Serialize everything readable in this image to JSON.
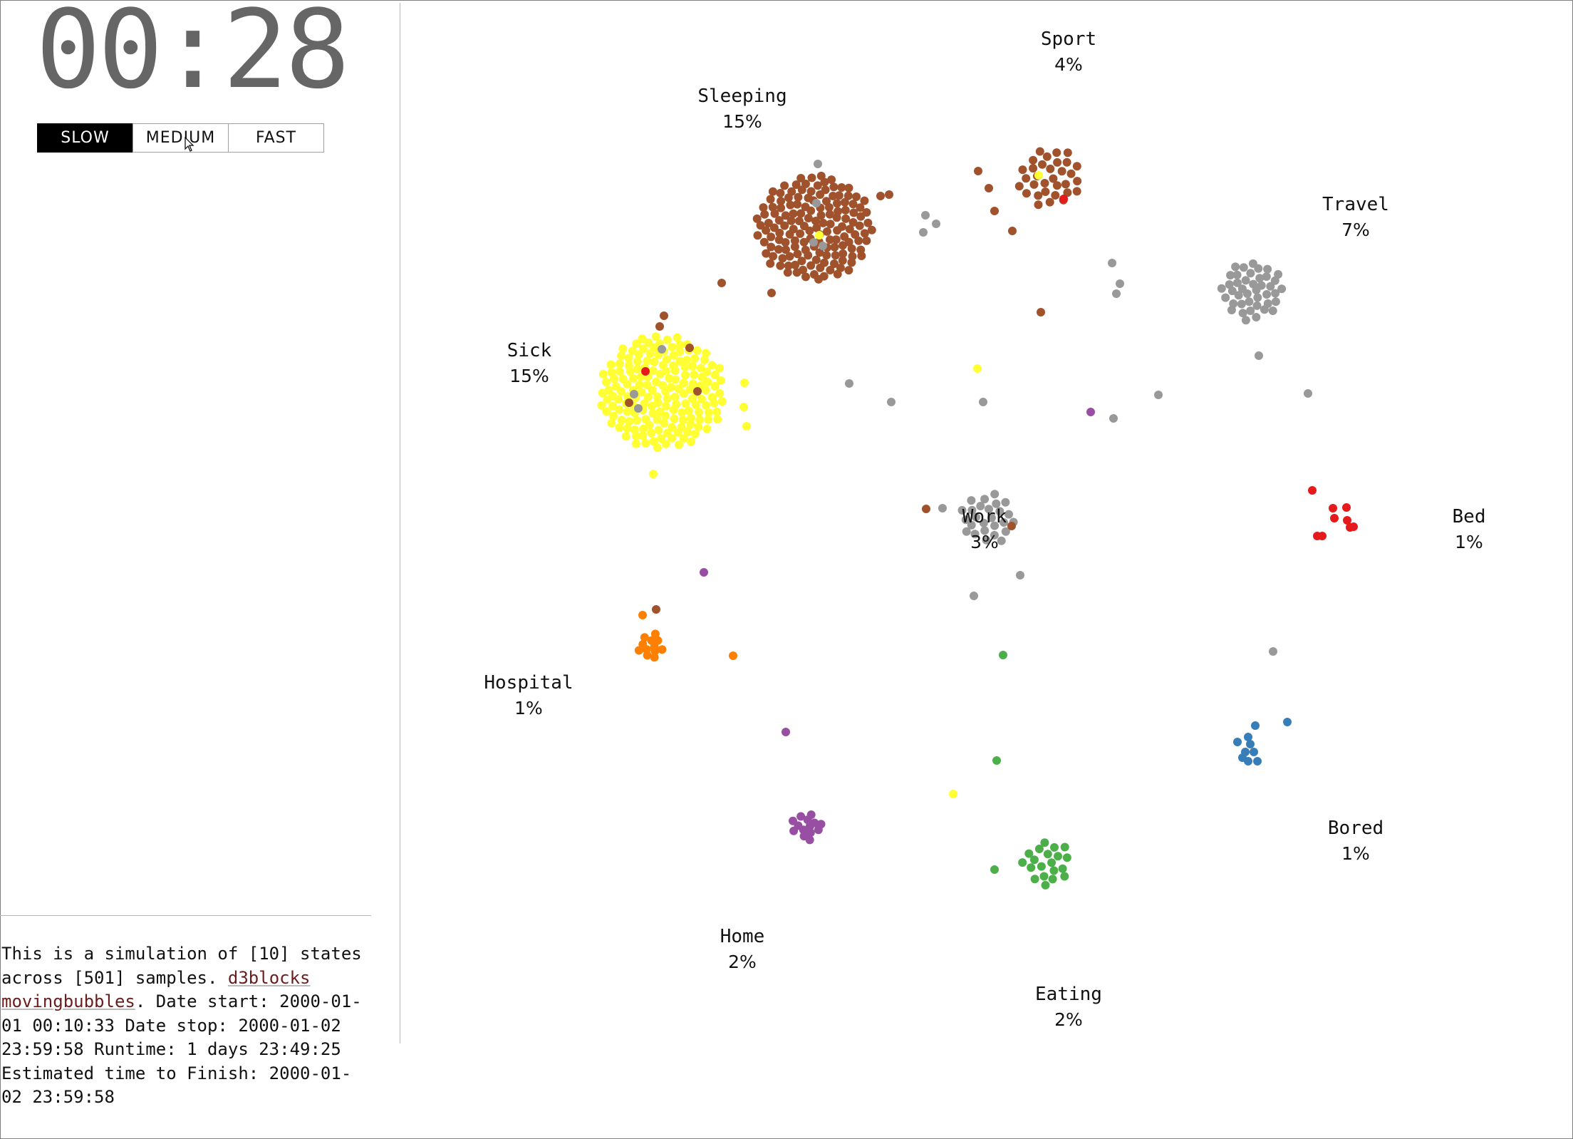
{
  "clock": "00:28",
  "speed": {
    "buttons": [
      {
        "label": "SLOW",
        "active": true
      },
      {
        "label": "MEDIUM",
        "active": false
      },
      {
        "label": "FAST",
        "active": false
      }
    ]
  },
  "description": {
    "text1": "This is a simulation of [10] states across [501] samples. ",
    "link": "d3blocks movingbubbles",
    "text2": ". Date start: 2000-01-01 00:10:33 Date stop: 2000-01-02 23:59:58 Runtime: 1 days 23:49:25 Estimated time to Finish: 2000-01-02 23:59:58"
  },
  "colors": {
    "sleeping": "#a0522d",
    "sick": "#ffff33",
    "grey": "#999999",
    "bed": "#e41a1c",
    "bored": "#377eb8",
    "eating": "#4daf4a",
    "home": "#984ea3",
    "hospital": "#ff7f00"
  },
  "states": [
    {
      "name": "Sport",
      "percent": "4%"
    },
    {
      "name": "Sleeping",
      "percent": "15%"
    },
    {
      "name": "Travel",
      "percent": "7%"
    },
    {
      "name": "Sick",
      "percent": "15%"
    },
    {
      "name": "Work",
      "percent": "3%"
    },
    {
      "name": "Bed",
      "percent": "1%"
    },
    {
      "name": "Hospital",
      "percent": "1%"
    },
    {
      "name": "Bored",
      "percent": "1%"
    },
    {
      "name": "Home",
      "percent": "2%"
    },
    {
      "name": "Eating",
      "percent": "2%"
    }
  ]
}
